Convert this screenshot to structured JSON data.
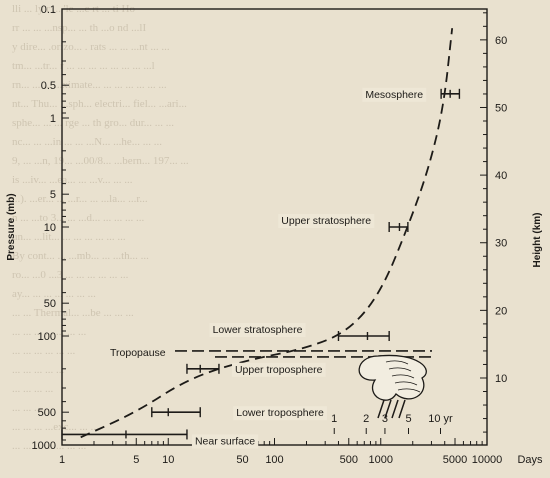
{
  "chart_data": {
    "type": "line",
    "title": "",
    "xlabel": "Days",
    "xscale": "log",
    "xlim": [
      1,
      10000
    ],
    "x_ticks": [
      1,
      5,
      10,
      50,
      100,
      500,
      1000,
      5000,
      10000
    ],
    "x_tick_labels": [
      "1",
      "5",
      "10",
      "50",
      "100",
      "500",
      "1000",
      "5000",
      "10000"
    ],
    "ylabel_left": "Pressure (mb)",
    "yscale_left": "log",
    "ylim_left": [
      1000,
      0.1
    ],
    "y_ticks_left": [
      0.1,
      0.5,
      1,
      5,
      10,
      50,
      100,
      500,
      1000
    ],
    "y_tick_labels_left": [
      "0.1",
      "0.5",
      "1",
      "5",
      "10",
      "50",
      "100",
      "500",
      "1000"
    ],
    "ylabel_right": "Height (km)",
    "y_ticks_right": [
      10,
      20,
      30,
      40,
      50,
      60
    ],
    "y_tick_labels_right": [
      "10",
      "20",
      "30",
      "40",
      "50",
      "60"
    ],
    "secondary_x_ticks_days": [
      365,
      730,
      1095,
      1825,
      3650
    ],
    "secondary_x_tick_labels": [
      "1",
      "2",
      "3",
      "5",
      "10 yr"
    ],
    "points": [
      {
        "label": "Near surface",
        "x": 4,
        "x_err": [
          1,
          15
        ],
        "pressure": 800
      },
      {
        "label": "Lower troposphere",
        "x": 10,
        "x_err": [
          7,
          20
        ],
        "pressure": 500
      },
      {
        "label": "Upper troposphere",
        "x": 20,
        "x_err": [
          15,
          30
        ],
        "pressure": 200
      },
      {
        "label": "Lower stratosphere",
        "x": 750,
        "x_err": [
          400,
          1200
        ],
        "pressure": 100
      },
      {
        "label": "Upper stratosphere",
        "x": 1500,
        "x_err": [
          1200,
          1800
        ],
        "pressure": 10
      },
      {
        "label": "Mesosphere",
        "x": 4500,
        "x_err": [
          3700,
          5500
        ],
        "pressure": 0.6
      }
    ],
    "curve": [
      [
        1.5,
        850
      ],
      [
        5,
        500
      ],
      [
        15,
        250
      ],
      [
        50,
        170
      ],
      [
        200,
        130
      ],
      [
        500,
        90
      ],
      [
        1000,
        40
      ],
      [
        1800,
        10
      ],
      [
        2800,
        3
      ],
      [
        3900,
        0.8
      ],
      [
        4700,
        0.15
      ]
    ],
    "tropopause": {
      "label": "Tropopause",
      "pressure": 140
    },
    "grid": false,
    "legend": "none"
  },
  "bg_text": [
    "lli  ... ly  r  ...  'le  ...c  rt   ... ti   Ho",
    "rr   ... ... ...nsp... ... th   ...o   nd    ...lI",
    "y dire... .orizo... . rats ... ... ...nt   ... ...",
    "tm... ...tr... r ... ... ... ... ... ... ... ...l",
    "rn... ... ... ...ximate... ... ... ... ... ... ...",
    "nt... Thu... ...sph...  electri... fiel... ...ari...",
    "sphe... ... ... rge ... th   gro... dur... ... ...",
    "nc... ... ...in ... ... ...N... ...he... ... ...",
    "9, ... ...n, 19... ...00/8... ...bern... 197... ...",
    "is ...iv... ...ea... ... ...v... ... ...",
    "...). ...er... ... ...r... ... ...la... ...r...",
    "n ... ...to 3... ... ...d... ... ... ... ...",
    "un... ...lit... ... ... ... ... ... ...",
    "By cont... ... ...mb... ... ...th... ...",
    "ro... ...0 ...3 ... ... ... ... ... ...",
    "ay... ... ... ... ... ... ...",
    "...  ...  Thermal... ...be ... ... ...",
    "...  ... ... ... ... ... ...",
    "...  ... ... ... ... ...",
    "...  ... ... ... ...",
    "...  ... ... ...",
    "...  ... ...",
    "... ... ... ...exc... ... ...",
    "...  ...  ... ... ... ... ..."
  ]
}
